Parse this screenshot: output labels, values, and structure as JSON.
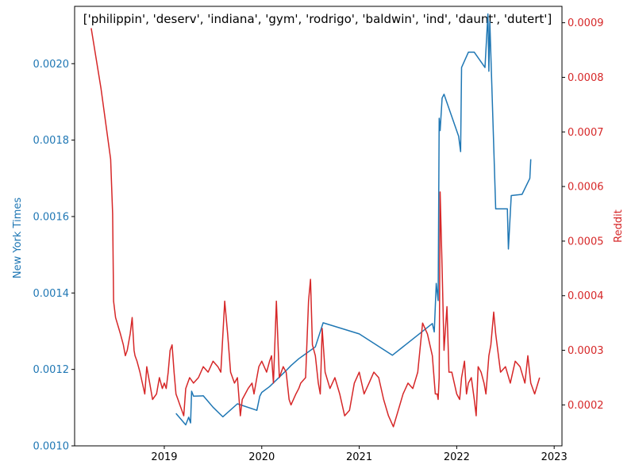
{
  "chart_data": {
    "type": "line",
    "title": "['philippin', 'deserv', 'indiana', 'gym', 'rodrigo', 'baldwin', 'ind', 'daunt', 'dutert']",
    "x_ticks": [
      "2019",
      "2020",
      "2021",
      "2022",
      "2023"
    ],
    "colors": {
      "nyt": "#1f77b4",
      "reddit": "#d62728"
    },
    "left_axis": {
      "label": "New York Times",
      "ylim": [
        0.001,
        0.00215
      ],
      "ticks": [
        "0.0010",
        "0.0012",
        "0.0014",
        "0.0016",
        "0.0018",
        "0.0020"
      ]
    },
    "right_axis": {
      "label": "Reddit",
      "ylim": [
        0.000125,
        0.00093
      ],
      "ticks": [
        "0.0002",
        "0.0003",
        "0.0004",
        "0.0005",
        "0.0006",
        "0.0007",
        "0.0008",
        "0.0009"
      ]
    },
    "series": [
      {
        "axis": "left",
        "x": [
          2019.12,
          2019.22,
          2019.25,
          2019.27,
          2019.28,
          2019.3,
          2019.4,
          2019.5,
          2019.6,
          2019.75,
          2019.95,
          2019.98,
          2020.0,
          2020.08,
          2020.25,
          2020.3,
          2020.38,
          2020.55,
          2020.63,
          2021.0,
          2021.34,
          2021.75,
          2021.77,
          2021.79,
          2021.81,
          2021.82,
          2021.83,
          2021.85,
          2021.87,
          2022.02,
          2022.04,
          2022.05,
          2022.12,
          2022.18,
          2022.29,
          2022.32,
          2022.33,
          2022.34,
          2022.4,
          2022.52,
          2022.53,
          2022.56,
          2022.67,
          2022.75,
          2022.76
        ],
        "y": [
          0.001085,
          0.001055,
          0.001075,
          0.00106,
          0.001143,
          0.00113,
          0.001131,
          0.001101,
          0.001076,
          0.00111,
          0.001093,
          0.00113,
          0.00114,
          0.001155,
          0.001197,
          0.00121,
          0.001228,
          0.001259,
          0.001322,
          0.001293,
          0.001237,
          0.00132,
          0.001298,
          0.001425,
          0.00138,
          0.001857,
          0.001825,
          0.00191,
          0.00192,
          0.00181,
          0.00177,
          0.00199,
          0.00203,
          0.00203,
          0.00199,
          0.00213,
          0.00198,
          0.00211,
          0.00162,
          0.00162,
          0.001515,
          0.001655,
          0.001658,
          0.0017,
          0.00175
        ]
      },
      {
        "axis": "right",
        "x": [
          2018.25,
          2018.35,
          2018.45,
          2018.47,
          2018.48,
          2018.5,
          2018.55,
          2018.58,
          2018.6,
          2018.62,
          2018.65,
          2018.67,
          2018.69,
          2018.7,
          2018.72,
          2018.75,
          2018.8,
          2018.82,
          2018.83,
          2018.85,
          2018.88,
          2018.92,
          2018.95,
          2018.98,
          2019.0,
          2019.02,
          2019.04,
          2019.06,
          2019.08,
          2019.1,
          2019.12,
          2019.14,
          2019.16,
          2019.18,
          2019.2,
          2019.22,
          2019.26,
          2019.3,
          2019.35,
          2019.4,
          2019.45,
          2019.5,
          2019.55,
          2019.58,
          2019.62,
          2019.65,
          2019.68,
          2019.72,
          2019.75,
          2019.78,
          2019.8,
          2019.83,
          2019.86,
          2019.9,
          2019.92,
          2019.95,
          2019.97,
          2020.0,
          2020.05,
          2020.08,
          2020.1,
          2020.12,
          2020.15,
          2020.18,
          2020.22,
          2020.25,
          2020.28,
          2020.3,
          2020.35,
          2020.38,
          2020.4,
          2020.45,
          2020.48,
          2020.5,
          2020.52,
          2020.55,
          2020.58,
          2020.6,
          2020.62,
          2020.65,
          2020.7,
          2020.75,
          2020.8,
          2020.85,
          2020.9,
          2020.95,
          2021.0,
          2021.05,
          2021.1,
          2021.15,
          2021.2,
          2021.25,
          2021.3,
          2021.35,
          2021.4,
          2021.45,
          2021.5,
          2021.55,
          2021.6,
          2021.65,
          2021.7,
          2021.75,
          2021.78,
          2021.8,
          2021.81,
          2021.82,
          2021.83,
          2021.85,
          2021.87,
          2021.9,
          2021.92,
          2021.95,
          2022.0,
          2022.03,
          2022.05,
          2022.08,
          2022.1,
          2022.12,
          2022.15,
          2022.18,
          2022.2,
          2022.22,
          2022.25,
          2022.28,
          2022.3,
          2022.33,
          2022.35,
          2022.38,
          2022.4,
          2022.45,
          2022.5,
          2022.55,
          2022.6,
          2022.65,
          2022.7,
          2022.73,
          2022.76,
          2022.8,
          2022.85
        ],
        "y": [
          0.00089,
          0.00078,
          0.00065,
          0.00055,
          0.00039,
          0.00036,
          0.00033,
          0.00031,
          0.00029,
          0.0003,
          0.00033,
          0.00036,
          0.0003,
          0.00029,
          0.00028,
          0.00026,
          0.00022,
          0.00027,
          0.00026,
          0.00024,
          0.00021,
          0.00022,
          0.00025,
          0.00023,
          0.00024,
          0.00023,
          0.00026,
          0.0003,
          0.00031,
          0.00026,
          0.00022,
          0.00021,
          0.0002,
          0.00019,
          0.00018,
          0.00023,
          0.00025,
          0.00024,
          0.00025,
          0.00027,
          0.00026,
          0.00028,
          0.00027,
          0.00026,
          0.00039,
          0.00033,
          0.00026,
          0.00024,
          0.00025,
          0.00018,
          0.00021,
          0.00022,
          0.00023,
          0.00024,
          0.00022,
          0.00025,
          0.00027,
          0.00028,
          0.00026,
          0.00028,
          0.00029,
          0.00024,
          0.00039,
          0.00025,
          0.00027,
          0.00026,
          0.00021,
          0.0002,
          0.00022,
          0.00023,
          0.00024,
          0.00025,
          0.00039,
          0.00043,
          0.00031,
          0.00029,
          0.00024,
          0.00022,
          0.00034,
          0.00026,
          0.00023,
          0.00025,
          0.00022,
          0.00018,
          0.00019,
          0.00024,
          0.00026,
          0.00022,
          0.00024,
          0.00026,
          0.00025,
          0.00021,
          0.00018,
          0.00016,
          0.00019,
          0.00022,
          0.00024,
          0.00023,
          0.00026,
          0.00035,
          0.00033,
          0.00029,
          0.00022,
          0.00022,
          0.00021,
          0.00025,
          0.00059,
          0.00045,
          0.0003,
          0.00038,
          0.00026,
          0.00026,
          0.00022,
          0.00021,
          0.00025,
          0.00028,
          0.00022,
          0.00024,
          0.00025,
          0.00021,
          0.00018,
          0.00027,
          0.00026,
          0.00024,
          0.00022,
          0.00029,
          0.00031,
          0.00037,
          0.00033,
          0.00026,
          0.00027,
          0.00024,
          0.00028,
          0.00027,
          0.00024,
          0.00029,
          0.00024,
          0.00022,
          0.00025
        ]
      }
    ]
  }
}
